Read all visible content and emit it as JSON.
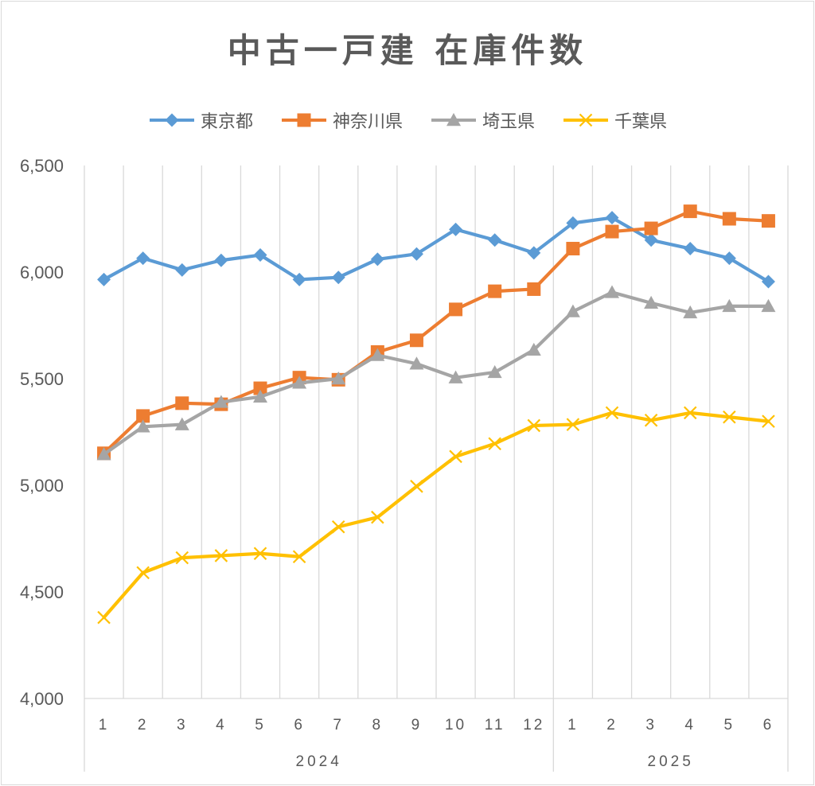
{
  "chart_data": {
    "type": "line",
    "title": "中古一戸建 在庫件数",
    "x": [
      "1",
      "2",
      "3",
      "4",
      "5",
      "6",
      "7",
      "8",
      "9",
      "10",
      "11",
      "12",
      "1",
      "2",
      "3",
      "4",
      "5",
      "6"
    ],
    "x_groups": [
      {
        "label": "2024",
        "count": 12
      },
      {
        "label": "2025",
        "count": 6
      }
    ],
    "ylim": [
      4000,
      6500
    ],
    "yticks": [
      4000,
      4500,
      5000,
      5500,
      6000,
      6500
    ],
    "ytick_labels": [
      "4,000",
      "4,500",
      "5,000",
      "5,500",
      "6,000",
      "6,500"
    ],
    "grid": "vertical",
    "legend_position": "top",
    "series": [
      {
        "name": "東京都",
        "color": "#5b9bd5",
        "marker": "diamond",
        "values": [
          5965,
          6065,
          6010,
          6055,
          6080,
          5965,
          5975,
          6060,
          6085,
          6200,
          6150,
          6090,
          6230,
          6255,
          6150,
          6110,
          6065,
          5955
        ]
      },
      {
        "name": "神奈川県",
        "color": "#ed7d31",
        "marker": "square",
        "values": [
          5150,
          5325,
          5385,
          5380,
          5455,
          5505,
          5495,
          5625,
          5680,
          5825,
          5910,
          5920,
          6110,
          6190,
          6205,
          6285,
          6250,
          6240
        ]
      },
      {
        "name": "埼玉県",
        "color": "#a5a5a5",
        "marker": "triangle",
        "values": [
          5145,
          5275,
          5285,
          5390,
          5415,
          5480,
          5500,
          5610,
          5570,
          5505,
          5530,
          5635,
          5815,
          5905,
          5855,
          5810,
          5840,
          5840
        ]
      },
      {
        "name": "千葉県",
        "color": "#ffc000",
        "marker": "x",
        "values": [
          4380,
          4590,
          4660,
          4670,
          4680,
          4665,
          4805,
          4850,
          4995,
          5135,
          5195,
          5280,
          5285,
          5340,
          5305,
          5340,
          5320,
          5300
        ]
      }
    ]
  }
}
